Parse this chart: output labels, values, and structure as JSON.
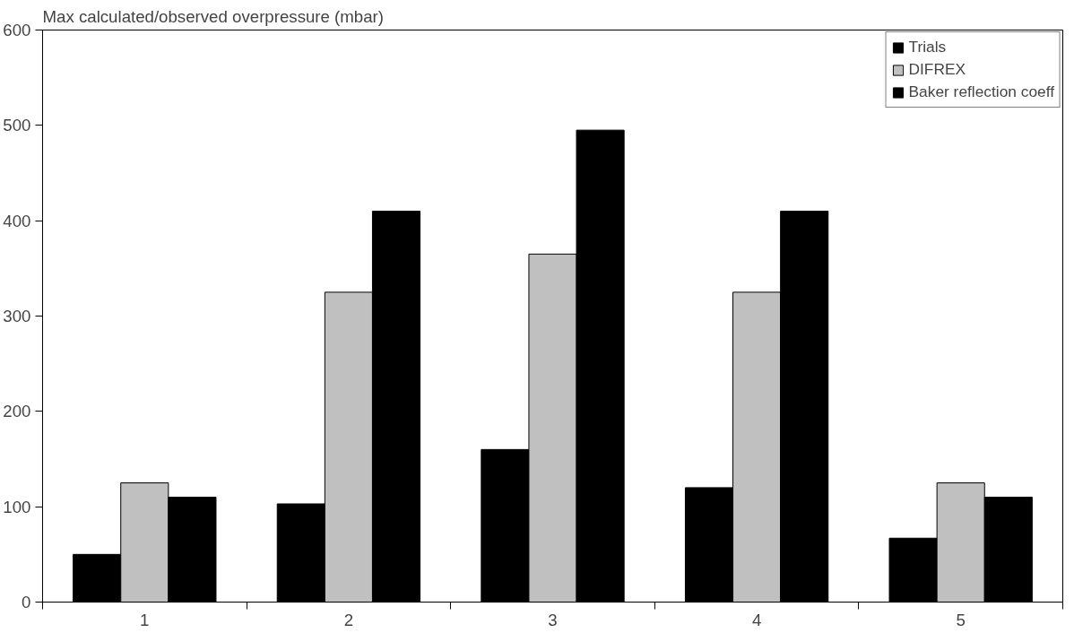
{
  "chart_data": {
    "type": "bar",
    "ylabel": "Max calculated/observed overpressure (mbar)",
    "categories": [
      "1",
      "2",
      "3",
      "4",
      "5"
    ],
    "series": [
      {
        "name": "Trials",
        "color": "#000000",
        "values": [
          50,
          103,
          160,
          120,
          67
        ]
      },
      {
        "name": "DIFREX",
        "color": "#c0c0c0",
        "values": [
          125,
          325,
          365,
          325,
          125
        ]
      },
      {
        "name": "Baker reflection coeff",
        "color": "#000000",
        "values": [
          110,
          410,
          495,
          410,
          110
        ]
      }
    ],
    "ylim": [
      0,
      600
    ],
    "yticks": [
      0,
      100,
      200,
      300,
      400,
      500,
      600
    ],
    "grid": false,
    "legend": "top right"
  }
}
